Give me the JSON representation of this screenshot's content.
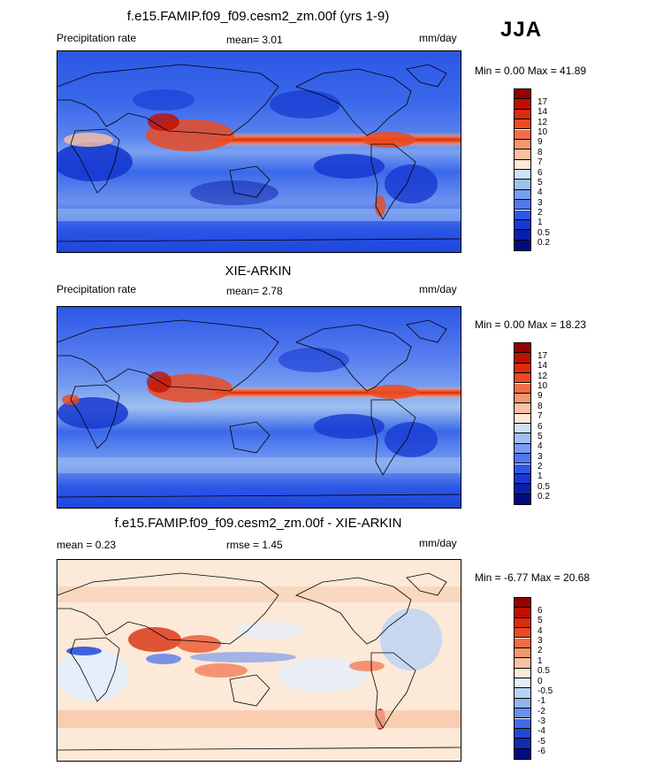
{
  "season": "JJA",
  "panels": [
    {
      "title": "f.e15.FAMIP.f09_f09.cesm2_zm.00f (yrs 1-9)",
      "left_label": "Precipitation rate",
      "center_label": "mean=   3.01",
      "right_label": "mm/day",
      "minmax": "Min =   0.00 Max =  41.89",
      "colorbar": {
        "labels": [
          "17",
          "14",
          "12",
          "10",
          "9",
          "8",
          "7",
          "6",
          "5",
          "4",
          "3",
          "2",
          "1",
          "0.5",
          "0.2"
        ],
        "colors": [
          "#960000",
          "#c00e00",
          "#d92d0c",
          "#ea4b22",
          "#f26d45",
          "#f6966f",
          "#f9c1a2",
          "#fce9d8",
          "#cfe0f7",
          "#9fc1f0",
          "#779df0",
          "#5178ee",
          "#2c57e6",
          "#1638d0",
          "#0a1ea8",
          "#000c80"
        ]
      }
    },
    {
      "title": "XIE-ARKIN",
      "left_label": "Precipitation rate",
      "center_label": "mean=   2.78",
      "right_label": "mm/day",
      "minmax": "Min =   0.00 Max =  18.23",
      "colorbar": {
        "labels": [
          "17",
          "14",
          "12",
          "10",
          "9",
          "8",
          "7",
          "6",
          "5",
          "4",
          "3",
          "2",
          "1",
          "0.5",
          "0.2"
        ],
        "colors": [
          "#960000",
          "#c00e00",
          "#d92d0c",
          "#ea4b22",
          "#f26d45",
          "#f6966f",
          "#f9c1a2",
          "#fce9d8",
          "#cfe0f7",
          "#9fc1f0",
          "#779df0",
          "#5178ee",
          "#2c57e6",
          "#1638d0",
          "#0a1ea8",
          "#000c80"
        ]
      }
    },
    {
      "title": "f.e15.FAMIP.f09_f09.cesm2_zm.00f - XIE-ARKIN",
      "left_label": "mean =   0.23",
      "center_label": "rmse =   1.45",
      "right_label": "mm/day",
      "minmax": "Min =  -6.77 Max =  20.68",
      "colorbar": {
        "labels": [
          "6",
          "5",
          "4",
          "3",
          "2",
          "1",
          "0.5",
          "0",
          "-0.5",
          "-1",
          "-2",
          "-3",
          "-4",
          "-5",
          "-6"
        ],
        "colors": [
          "#960000",
          "#c00e00",
          "#d92d0c",
          "#ea4b22",
          "#f26d45",
          "#f6966f",
          "#f9c1a2",
          "#fce9d8",
          "#e4eefb",
          "#b8d2f5",
          "#8fb4f0",
          "#6890ee",
          "#426be8",
          "#2248d8",
          "#0e2cb4",
          "#000c80"
        ]
      }
    }
  ]
}
